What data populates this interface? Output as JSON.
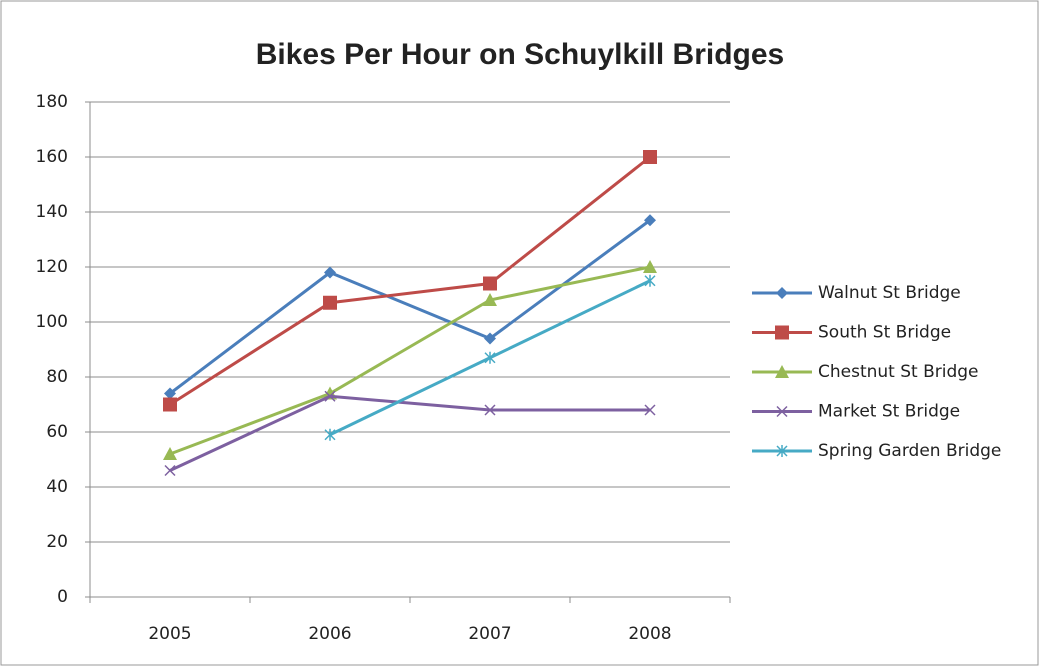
{
  "chart_data": {
    "type": "line",
    "title": "Bikes Per Hour on Schuylkill Bridges",
    "categories": [
      "2005",
      "2006",
      "2007",
      "2008"
    ],
    "series": [
      {
        "name": "Walnut St Bridge",
        "color": "#4a7ebb",
        "marker": "diamond",
        "values": [
          74,
          118,
          94,
          137
        ]
      },
      {
        "name": "South St Bridge",
        "color": "#be4b48",
        "marker": "square",
        "values": [
          70,
          107,
          114,
          160
        ]
      },
      {
        "name": "Chestnut St Bridge",
        "color": "#98b954",
        "marker": "triangle",
        "values": [
          52,
          74,
          108,
          120
        ]
      },
      {
        "name": "Market St Bridge",
        "color": "#7d60a0",
        "marker": "x",
        "values": [
          46,
          73,
          68,
          68
        ]
      },
      {
        "name": "Spring Garden Bridge",
        "color": "#46aac5",
        "marker": "star",
        "values": [
          null,
          59,
          87,
          115
        ]
      }
    ],
    "ylim": [
      0,
      180
    ],
    "yticks": [
      0,
      20,
      40,
      60,
      80,
      100,
      120,
      140,
      160,
      180
    ],
    "grid": true,
    "legend": "right"
  }
}
